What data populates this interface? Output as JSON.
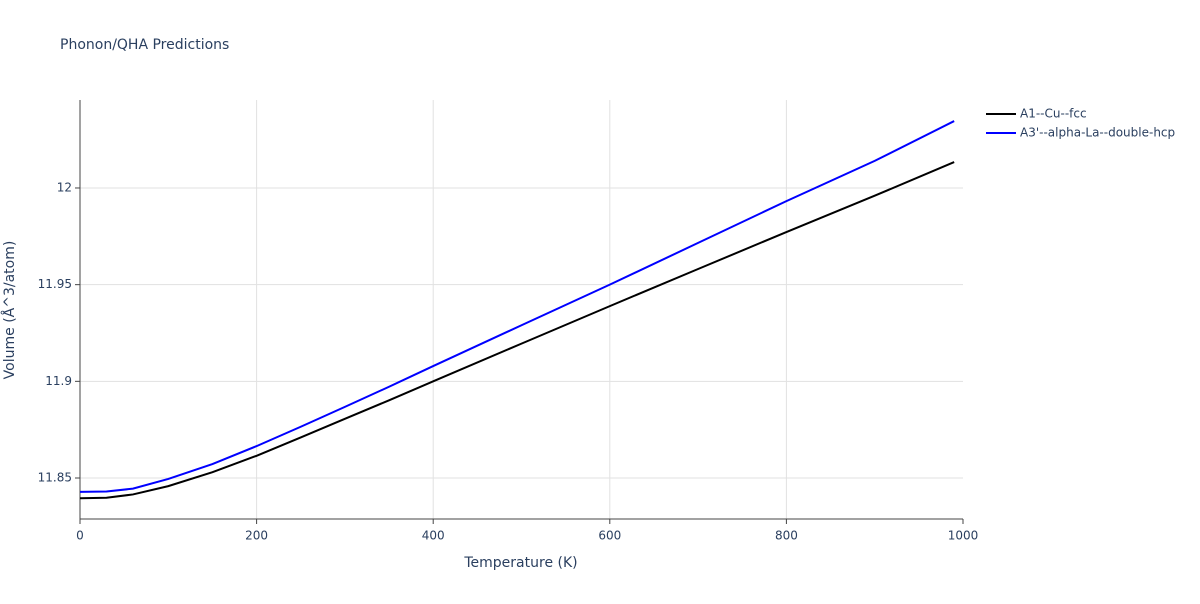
{
  "chart_data": {
    "type": "line",
    "title": "Phonon/QHA Predictions",
    "x_label": "Temperature (K)",
    "y_label": "Volume (Å^3/atom)",
    "x": [
      0,
      30,
      60,
      100,
      150,
      200,
      250,
      300,
      350,
      400,
      500,
      600,
      700,
      800,
      900,
      990
    ],
    "series": [
      {
        "name": "A1--Cu--fcc",
        "color": "#000000",
        "values": [
          11.8395,
          11.8398,
          11.8415,
          11.8458,
          11.853,
          11.8615,
          11.871,
          11.8806,
          11.8902,
          11.9,
          11.9195,
          11.9389,
          11.9581,
          11.9772,
          11.996,
          12.0134
        ]
      },
      {
        "name": "A3'--alpha-La--double-hcp",
        "color": "#0000ff",
        "values": [
          11.8428,
          11.843,
          11.8445,
          11.8495,
          11.8572,
          11.8665,
          11.8765,
          11.8868,
          11.8972,
          11.9079,
          11.929,
          11.95,
          11.9716,
          11.9932,
          12.014,
          12.0346
        ]
      }
    ],
    "xlim": [
      0,
      1000
    ],
    "xticks": [
      0,
      200,
      400,
      600,
      800,
      1000
    ],
    "ylim": [
      11.8288,
      12.0455
    ],
    "yticks": [
      11.85,
      11.9,
      11.95,
      12
    ],
    "grid": true,
    "legend": "right"
  }
}
